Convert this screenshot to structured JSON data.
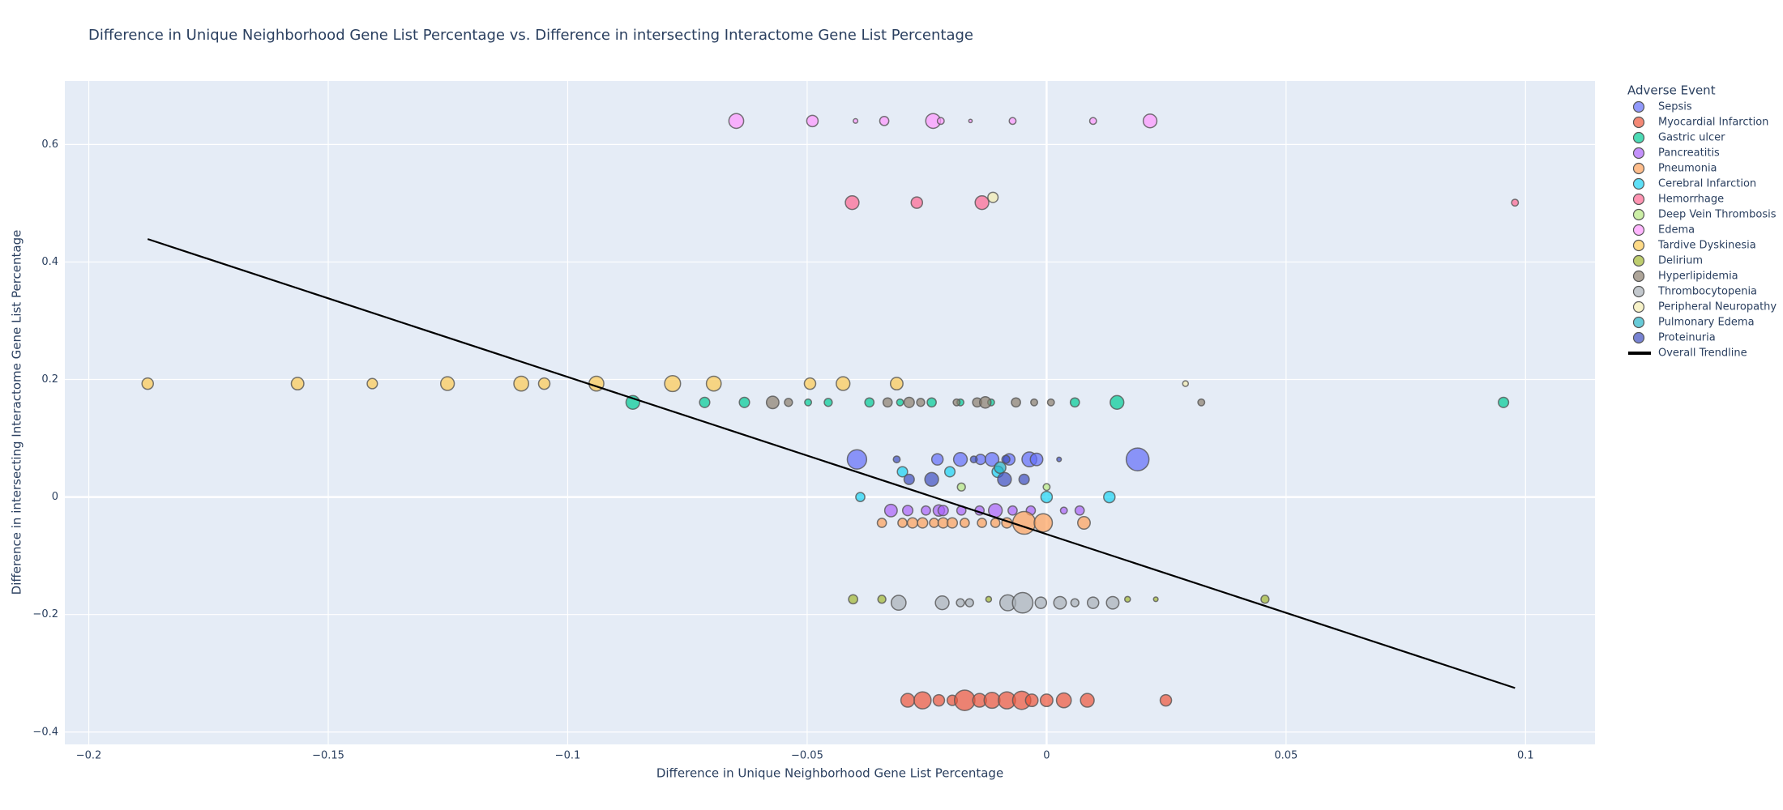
{
  "chart_data": {
    "type": "scatter",
    "title": "Difference in Unique Neighborhood Gene List Percentage vs. Difference in intersecting Interactome Gene List Percentage",
    "x_label": "Difference in Unique Neighborhood Gene List Percentage",
    "y_label": "Difference in intersecting Interactome Gene List Percentage",
    "legend_title": "Adverse Event",
    "legend_position": "right",
    "grid": true,
    "xlim": [
      -0.205,
      0.1145
    ],
    "ylim": [
      -0.421,
      0.708
    ],
    "xticks": [
      {
        "value": -0.2,
        "label": "−0.2"
      },
      {
        "value": -0.15,
        "label": "−0.15"
      },
      {
        "value": -0.1,
        "label": "−0.1"
      },
      {
        "value": -0.05,
        "label": "−0.05"
      },
      0,
      0.05,
      0.1
    ],
    "yticks": [
      {
        "value": -0.4,
        "label": "−0.4"
      },
      {
        "value": -0.2,
        "label": "−0.2"
      },
      0,
      0.2,
      0.4,
      0.6
    ],
    "series": [
      {
        "name": "Sepsis",
        "color": "#636efa",
        "x": [
          -0.0396,
          -0.0228,
          -0.018,
          -0.0138,
          -0.0114,
          -0.0078,
          -0.0036,
          -0.0021,
          0.019
        ],
        "y": [
          0.064,
          0.064,
          0.064,
          0.064,
          0.064,
          0.064,
          0.064,
          0.064,
          0.064
        ],
        "sizes": [
          17,
          10,
          12,
          9,
          12,
          10,
          13,
          11,
          20
        ]
      },
      {
        "name": "Myocardial Infarction",
        "color": "#ef553b",
        "x": [
          -0.029,
          -0.0259,
          -0.0225,
          -0.0197,
          -0.0171,
          -0.014,
          -0.0114,
          -0.0083,
          -0.0052,
          -0.0031,
          0.0,
          0.0036,
          0.0085,
          0.0249
        ],
        "y": [
          -0.346,
          -0.346,
          -0.346,
          -0.346,
          -0.346,
          -0.346,
          -0.346,
          -0.346,
          -0.346,
          -0.346,
          -0.346,
          -0.346,
          -0.346,
          -0.346
        ],
        "sizes": [
          12,
          15,
          10,
          9,
          18,
          12,
          14,
          15,
          16,
          11,
          11,
          13,
          12,
          10
        ]
      },
      {
        "name": "Gastric ulcer",
        "color": "#00cc96",
        "x": [
          -0.0864,
          -0.0714,
          -0.0631,
          -0.0498,
          -0.0456,
          -0.037,
          -0.0306,
          -0.024,
          -0.018,
          -0.0116,
          0.0059,
          0.0147,
          0.0954
        ],
        "y": [
          0.161,
          0.161,
          0.161,
          0.161,
          0.161,
          0.161,
          0.161,
          0.161,
          0.161,
          0.161,
          0.161,
          0.161,
          0.161
        ],
        "sizes": [
          12,
          9,
          9,
          6,
          7,
          8,
          6,
          8,
          6,
          6,
          8,
          12,
          9
        ]
      },
      {
        "name": "Pancreatitis",
        "color": "#ab63fa",
        "x": [
          -0.0325,
          -0.029,
          -0.0252,
          -0.0225,
          -0.0216,
          -0.0178,
          -0.014,
          -0.0107,
          -0.0071,
          -0.0033,
          0.0036,
          0.0069
        ],
        "y": [
          -0.023,
          -0.023,
          -0.023,
          -0.023,
          -0.023,
          -0.023,
          -0.023,
          -0.023,
          -0.023,
          -0.023,
          -0.023,
          -0.023
        ],
        "sizes": [
          11,
          9,
          8,
          10,
          9,
          8,
          8,
          12,
          8,
          8,
          6,
          8
        ]
      },
      {
        "name": "Pneumonia",
        "color": "#ffa15a",
        "x": [
          -0.0344,
          -0.0301,
          -0.028,
          -0.0259,
          -0.0235,
          -0.0216,
          -0.0197,
          -0.0171,
          -0.0135,
          -0.0107,
          -0.0083,
          -0.0047,
          -0.0007,
          0.0078
        ],
        "y": [
          -0.044,
          -0.044,
          -0.044,
          -0.044,
          -0.044,
          -0.044,
          -0.044,
          -0.044,
          -0.044,
          -0.044,
          -0.044,
          -0.044,
          -0.044,
          -0.044
        ],
        "sizes": [
          8,
          8,
          9,
          9,
          8,
          9,
          9,
          8,
          8,
          8,
          9,
          20,
          16,
          11
        ]
      },
      {
        "name": "Cerebral Infarction",
        "color": "#19d3f3",
        "x": [
          -0.0301,
          -0.0202,
          -0.0102,
          -0.0389,
          0.0,
          0.0131
        ],
        "y": [
          0.043,
          0.043,
          0.043,
          0.0,
          0.0,
          0.0
        ],
        "sizes": [
          9,
          9,
          10,
          8,
          10,
          10
        ]
      },
      {
        "name": "Hemorrhage",
        "color": "#ff6692",
        "x": [
          -0.0406,
          -0.0271,
          -0.0135,
          0.0978
        ],
        "y": [
          0.501,
          0.501,
          0.501,
          0.501
        ],
        "sizes": [
          12,
          10,
          12,
          6
        ]
      },
      {
        "name": "Deep Vein Thrombosis",
        "color": "#b6e880",
        "x": [
          -0.0178,
          0.0
        ],
        "y": [
          0.017,
          0.017
        ],
        "sizes": [
          7,
          6
        ]
      },
      {
        "name": "Edema",
        "color": "#ff97ff",
        "x": [
          -0.0648,
          -0.0489,
          -0.0399,
          -0.0339,
          -0.0237,
          -0.0221,
          -0.0159,
          -0.0071,
          0.0097,
          0.0216
        ],
        "y": [
          0.64,
          0.64,
          0.64,
          0.64,
          0.64,
          0.64,
          0.64,
          0.64,
          0.64,
          0.64
        ],
        "sizes": [
          13,
          10,
          4,
          8,
          13,
          6,
          3,
          6,
          6,
          12
        ]
      },
      {
        "name": "Tardive Dyskinesia",
        "color": "#fecb52",
        "x": [
          -0.1877,
          -0.1564,
          -0.1408,
          -0.1251,
          -0.1097,
          -0.1049,
          -0.094,
          -0.0781,
          -0.0695,
          -0.0494,
          -0.0425,
          -0.0313
        ],
        "y": [
          0.193,
          0.193,
          0.193,
          0.193,
          0.193,
          0.193,
          0.193,
          0.193,
          0.193,
          0.193,
          0.193,
          0.193
        ],
        "sizes": [
          10,
          11,
          9,
          12,
          13,
          10,
          13,
          14,
          13,
          10,
          12,
          11
        ]
      },
      {
        "name": "Delirium",
        "color": "#a3b830",
        "x": [
          -0.0404,
          -0.0344,
          -0.0121,
          0.0169,
          0.0228,
          0.0456
        ],
        "y": [
          -0.174,
          -0.174,
          -0.174,
          -0.174,
          -0.174,
          -0.174
        ],
        "sizes": [
          8,
          7,
          5,
          5,
          4,
          7
        ]
      },
      {
        "name": "Hyperlipidemia",
        "color": "#8c7f6e",
        "x": [
          -0.0572,
          -0.0539,
          -0.0332,
          -0.0287,
          -0.0263,
          -0.0188,
          -0.0145,
          -0.0128,
          -0.0064,
          -0.0026,
          0.0009,
          0.0323
        ],
        "y": [
          0.161,
          0.161,
          0.161,
          0.161,
          0.161,
          0.161,
          0.161,
          0.161,
          0.161,
          0.161,
          0.161,
          0.161
        ],
        "sizes": [
          11,
          7,
          8,
          9,
          7,
          6,
          8,
          10,
          8,
          6,
          6,
          6
        ]
      },
      {
        "name": "Thrombocytopenia",
        "color": "#aab0b8",
        "x": [
          -0.0309,
          -0.0218,
          -0.018,
          -0.0161,
          -0.0081,
          -0.005,
          -0.0012,
          0.0028,
          0.0059,
          0.0097,
          0.0138
        ],
        "y": [
          -0.18,
          -0.18,
          -0.18,
          -0.18,
          -0.18,
          -0.18,
          -0.18,
          -0.18,
          -0.18,
          -0.18,
          -0.18
        ],
        "sizes": [
          13,
          12,
          7,
          7,
          14,
          18,
          10,
          11,
          7,
          10,
          11
        ]
      },
      {
        "name": "Peripheral Neuropathy",
        "color": "#f3ecb0",
        "x": [
          -0.0112,
          0.029
        ],
        "y": [
          0.51,
          0.193
        ],
        "sizes": [
          9,
          5
        ]
      },
      {
        "name": "Pulmonary Edema",
        "color": "#26b5c8",
        "x": [
          -0.0097
        ],
        "y": [
          0.05
        ],
        "sizes": [
          10
        ]
      },
      {
        "name": "Proteinuria",
        "color": "#3f4fc0",
        "x": [
          -0.0313,
          -0.0152,
          -0.0085,
          0.0026,
          -0.0287,
          -0.024,
          -0.0088,
          -0.0047
        ],
        "y": [
          0.064,
          0.064,
          0.064,
          0.064,
          0.03,
          0.03,
          0.03,
          0.03
        ],
        "sizes": [
          6,
          6,
          7,
          4,
          9,
          12,
          12,
          9
        ]
      }
    ],
    "trendline": {
      "name": "Overall Trendline",
      "color": "#000000",
      "x": [
        -0.1877,
        0.0978
      ],
      "y": [
        0.439,
        -0.325
      ]
    }
  }
}
